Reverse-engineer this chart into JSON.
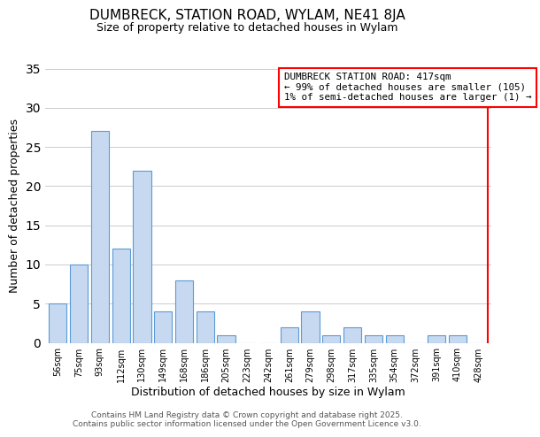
{
  "title": "DUMBRECK, STATION ROAD, WYLAM, NE41 8JA",
  "subtitle": "Size of property relative to detached houses in Wylam",
  "xlabel": "Distribution of detached houses by size in Wylam",
  "ylabel": "Number of detached properties",
  "bar_labels": [
    "56sqm",
    "75sqm",
    "93sqm",
    "112sqm",
    "130sqm",
    "149sqm",
    "168sqm",
    "186sqm",
    "205sqm",
    "223sqm",
    "242sqm",
    "261sqm",
    "279sqm",
    "298sqm",
    "317sqm",
    "335sqm",
    "354sqm",
    "372sqm",
    "391sqm",
    "410sqm",
    "428sqm"
  ],
  "bar_values": [
    5,
    10,
    27,
    12,
    22,
    4,
    8,
    4,
    1,
    0,
    0,
    2,
    4,
    1,
    2,
    1,
    1,
    0,
    1,
    1,
    0
  ],
  "bar_color": "#c6d9f0",
  "bar_edge_color": "#5b9bd5",
  "ylim": [
    0,
    35
  ],
  "yticks": [
    0,
    5,
    10,
    15,
    20,
    25,
    30,
    35
  ],
  "annotation_title": "DUMBRECK STATION ROAD: 417sqm",
  "annotation_line1": "← 99% of detached houses are smaller (105)",
  "annotation_line2": "1% of semi-detached houses are larger (1) →",
  "vertical_line_bar_index": 20,
  "footer_line1": "Contains HM Land Registry data © Crown copyright and database right 2025.",
  "footer_line2": "Contains public sector information licensed under the Open Government Licence v3.0.",
  "background_color": "#ffffff",
  "grid_color": "#cccccc"
}
